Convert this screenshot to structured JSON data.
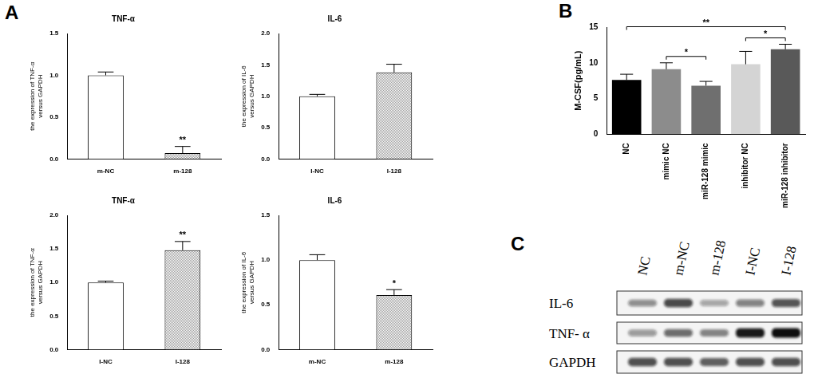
{
  "panel_labels": [
    "A",
    "B",
    "C"
  ],
  "chart_data": [
    {
      "type": "bar",
      "title": "TNF-α",
      "y_label": [
        "the expression of TNF-α",
        "versus GAPDH"
      ],
      "categories": [
        "m-NC",
        "m-128"
      ],
      "values": [
        1.0,
        0.07
      ],
      "error": [
        0.04,
        0.08
      ],
      "colors": [
        "#ffffff",
        "#9e9e9e"
      ],
      "ylim": [
        0,
        1.5
      ],
      "yticks": [
        {
          "value": 0,
          "label": "0.0"
        },
        0.5,
        {
          "value": 1,
          "label": "1.0"
        },
        1.5
      ],
      "grid": false,
      "annotations": [
        {
          "category": "m-128",
          "label": "**"
        }
      ]
    },
    {
      "type": "bar",
      "title": "IL-6",
      "y_label": [
        "the expression of IL-6",
        "versus GAPDH"
      ],
      "categories": [
        "I-NC",
        "I-128"
      ],
      "values": [
        1.0,
        1.38
      ],
      "error": [
        0.03,
        0.13
      ],
      "colors": [
        "#ffffff",
        "#9e9e9e"
      ],
      "ylim": [
        0,
        2
      ],
      "yticks": [
        {
          "value": 0,
          "label": "0.0"
        },
        0.5,
        {
          "value": 1,
          "label": "1.0"
        },
        1.5,
        {
          "value": 2,
          "label": "2.0"
        }
      ],
      "grid": false
    },
    {
      "type": "bar",
      "title": "TNF-α",
      "y_label": [
        "the expression of TNF-α",
        "versus GAPDH"
      ],
      "categories": [
        "I-NC",
        "I-128"
      ],
      "values": [
        1.0,
        1.48
      ],
      "error": [
        0.02,
        0.13
      ],
      "colors": [
        "#ffffff",
        "#9e9e9e"
      ],
      "ylim": [
        0,
        2
      ],
      "yticks": [
        {
          "value": 0,
          "label": "0.0"
        },
        0.5,
        {
          "value": 1,
          "label": "1.0"
        },
        1.5,
        {
          "value": 2,
          "label": "2.0"
        }
      ],
      "grid": false,
      "annotations": [
        {
          "category": "I-128",
          "label": "**"
        }
      ]
    },
    {
      "type": "bar",
      "title": "IL-6",
      "y_label": [
        "the expression of IL-6",
        "versus GAPDH"
      ],
      "categories": [
        "m-NC",
        "m-128"
      ],
      "values": [
        1.0,
        0.61
      ],
      "error": [
        0.06,
        0.06
      ],
      "colors": [
        "#ffffff",
        "#9e9e9e"
      ],
      "ylim": [
        0,
        1.5
      ],
      "yticks": [
        {
          "value": 0,
          "label": "0.0"
        },
        0.5,
        {
          "value": 1,
          "label": "1.0"
        },
        1.5
      ],
      "grid": false,
      "annotations": [
        {
          "category": "m-128",
          "label": "*"
        }
      ]
    },
    {
      "type": "bar",
      "y_label": "M-CSF(pg/mL)",
      "categories": [
        "NC",
        "mimic NC",
        "miR-128 mimic",
        "inhibitor NC",
        "miR-128 inhibitor"
      ],
      "values": [
        7.6,
        9.1,
        6.8,
        9.8,
        11.9
      ],
      "error": [
        0.8,
        0.9,
        0.6,
        1.8,
        0.7
      ],
      "colors": [
        "#000000",
        "#8c8c8c",
        "#6f6f6f",
        "#d4d4d4",
        "#595959"
      ],
      "ylim": [
        0,
        15
      ],
      "yticks": [
        0,
        5,
        10,
        15
      ],
      "grid": false,
      "significance": [
        {
          "from": "mimic NC",
          "to": "miR-128 mimic",
          "label": "*"
        },
        {
          "from": "inhibitor NC",
          "to": "miR-128 inhibitor",
          "label": "*"
        },
        {
          "from": "NC",
          "to": "miR-128 inhibitor",
          "label": "**"
        }
      ]
    }
  ],
  "blot": {
    "lanes": [
      "NC",
      "m-NC",
      "m-128",
      "I-NC",
      "I-128"
    ],
    "rows": [
      "IL-6",
      "TNF- α",
      "GAPDH"
    ]
  }
}
